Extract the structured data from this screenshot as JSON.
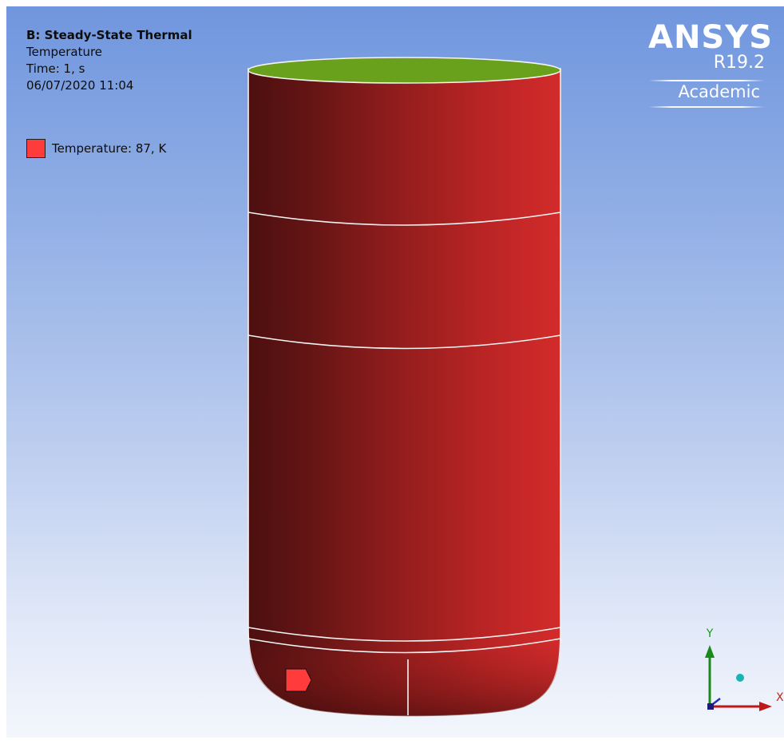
{
  "info": {
    "title": "B: Steady-State Thermal",
    "result": "Temperature",
    "time": "Time: 1, s",
    "timestamp": "06/07/2020 11:04"
  },
  "legend": {
    "label": "Temperature: 87, K",
    "swatch_color": "#ff3b3b"
  },
  "brand": {
    "name": "ANSYS",
    "version": "R19.2",
    "edition": "Academic"
  },
  "triad": {
    "y_label": "Y",
    "x_label": "X"
  },
  "colors": {
    "body_dark": "#521010",
    "body_light": "#d22a2a",
    "top_face": "#6aa11c",
    "background_top": "#7096de",
    "background_bottom": "#f3f6fc",
    "marker": "#ff3b3b"
  }
}
